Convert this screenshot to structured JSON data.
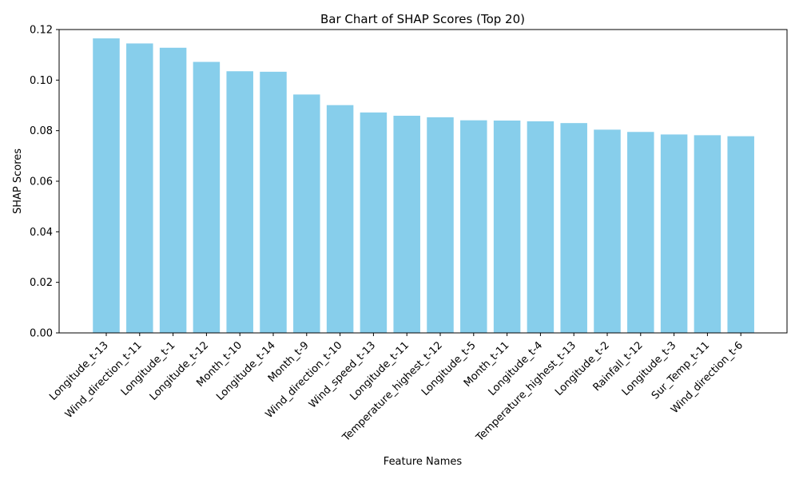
{
  "chart_data": {
    "type": "bar",
    "title": "Bar Chart of SHAP Scores (Top 20)",
    "xlabel": "Feature Names",
    "ylabel": "SHAP Scores",
    "ylim": [
      0,
      0.12
    ],
    "yticks": [
      "0.00",
      "0.02",
      "0.04",
      "0.06",
      "0.08",
      "0.10",
      "0.12"
    ],
    "grid": false,
    "legend": "none",
    "bar_color": "#87CEEB",
    "categories": [
      "Longitude_t-13",
      "Wind_direction_t-11",
      "Longitude_t-1",
      "Longitude_t-12",
      "Month_t-10",
      "Longitude_t-14",
      "Month_t-9",
      "Wind_direction_t-10",
      "Wind_speed_t-13",
      "Longitude_t-11",
      "Temperature_highest_t-12",
      "Longitude_t-5",
      "Month_t-11",
      "Longitude_t-4",
      "Temperature_highest_t-13",
      "Longitude_t-2",
      "Rainfall_t-12",
      "Longitude_t-3",
      "Sur_Temp_t-11",
      "Wind_direction_t-6"
    ],
    "values": [
      0.1165,
      0.1145,
      0.1128,
      0.1072,
      0.1035,
      0.1033,
      0.0943,
      0.0901,
      0.0872,
      0.0859,
      0.0853,
      0.0841,
      0.084,
      0.0837,
      0.083,
      0.0804,
      0.0795,
      0.0785,
      0.0782,
      0.0778
    ]
  }
}
